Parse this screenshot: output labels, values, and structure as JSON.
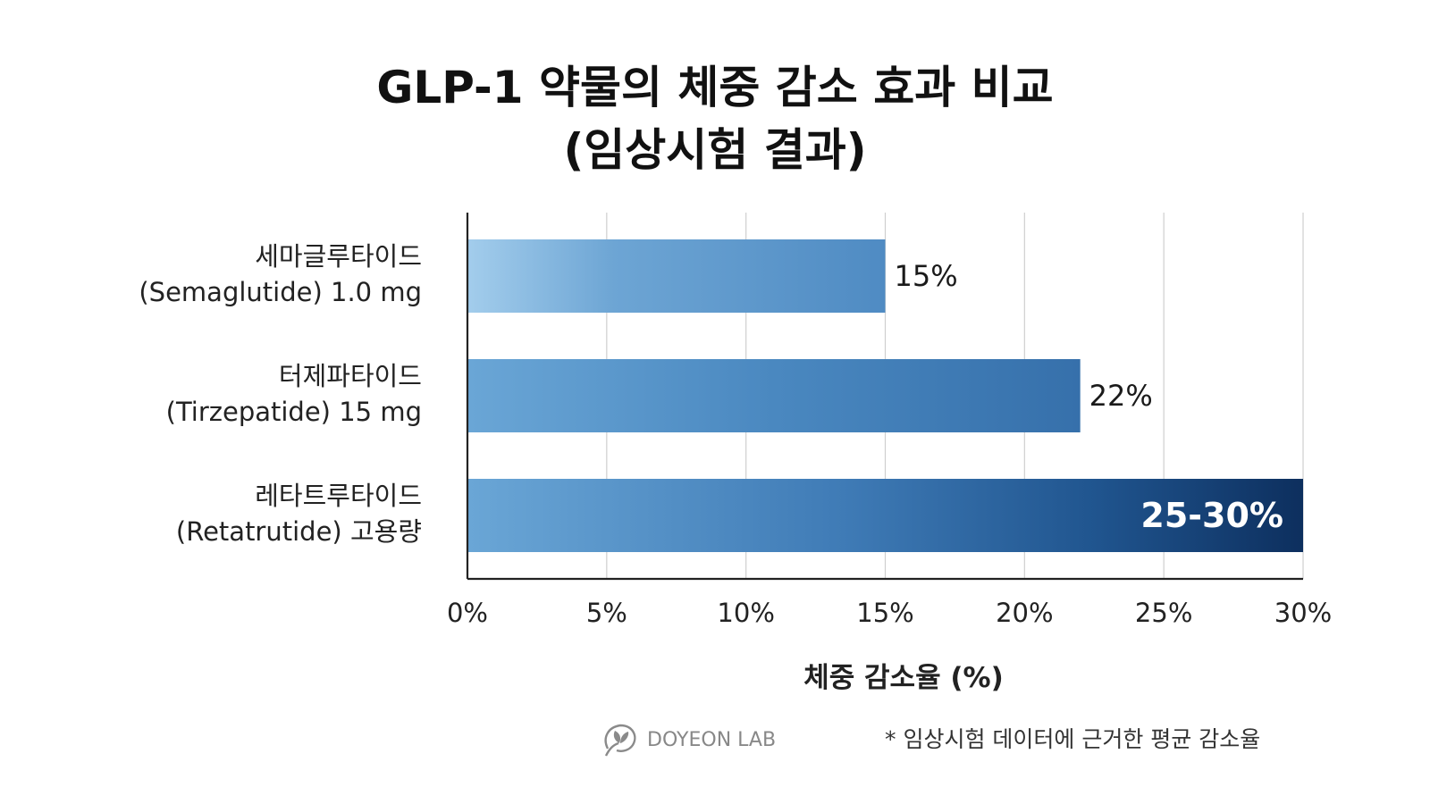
{
  "title_line1": "GLP-1 약물의 체중 감소 효과 비교",
  "title_line2": "(임상시험 결과)",
  "chart_data": {
    "type": "bar",
    "orientation": "horizontal",
    "categories": [
      {
        "line1": "세마글루타이드",
        "line2": "(Semaglutide) 1.0 mg"
      },
      {
        "line1": "터제파타이드",
        "line2": "(Tirzepatide) 15 mg"
      },
      {
        "line1": "레타트루타이드",
        "line2": "(Retatrutide) 고용량"
      }
    ],
    "values": [
      15,
      22,
      30
    ],
    "value_labels": [
      "15%",
      "22%",
      "25-30%"
    ],
    "xlabel": "체중 감소율 (%)",
    "xlim": [
      0,
      30
    ],
    "xticks": [
      0,
      5,
      10,
      15,
      20,
      25,
      30
    ],
    "xtick_labels": [
      "0%",
      "5%",
      "10%",
      "15%",
      "20%",
      "25%",
      "30%"
    ],
    "grid": true,
    "colors": {
      "bar_light": "#9ec9ea",
      "bar_mid": "#4d8ac2",
      "bar_dark": "#0f3566",
      "grid": "#cfcfcf",
      "axis": "#222222"
    }
  },
  "footer": {
    "brand": "DOYEON LAB",
    "brand_icon": "sprout-icon",
    "note": "* 임상시험 데이터에 근거한 평균 감소율"
  }
}
